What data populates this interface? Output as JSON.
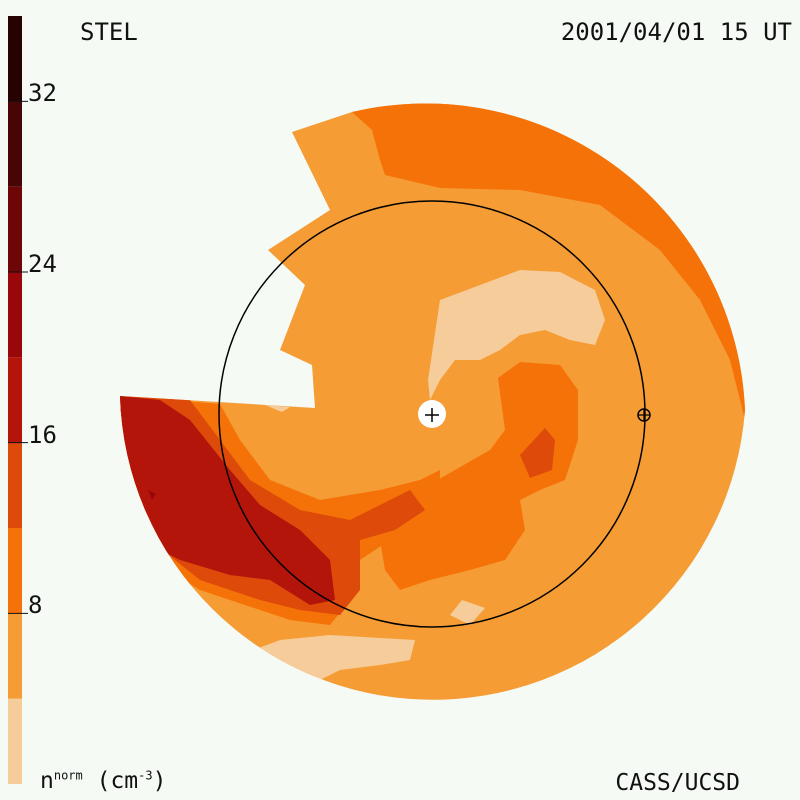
{
  "header": {
    "observatory": "STEL",
    "datetime": "2001/04/01 15 UT"
  },
  "footer": {
    "unit_base": "n",
    "unit_super": "norm",
    "unit_rest": " (cm",
    "unit_exp": "-3",
    "unit_close": ")",
    "credit": "CASS/UCSD"
  },
  "chart_data": {
    "type": "heatmap",
    "title": "",
    "colorbar": {
      "min": 0,
      "max": 36,
      "ticks": [
        8,
        16,
        24,
        32
      ],
      "tick_labels": [
        "8",
        "16",
        "24",
        "32"
      ],
      "levels": [
        {
          "from": 0,
          "to": 4,
          "color": "#f6cc9a"
        },
        {
          "from": 4,
          "to": 8,
          "color": "#f59c35"
        },
        {
          "from": 8,
          "to": 12,
          "color": "#f57208"
        },
        {
          "from": 12,
          "to": 16,
          "color": "#dd4a09"
        },
        {
          "from": 16,
          "to": 20,
          "color": "#b3150a"
        },
        {
          "from": 20,
          "to": 24,
          "color": "#9a070a"
        },
        {
          "from": 24,
          "to": 28,
          "color": "#6e0607"
        },
        {
          "from": 28,
          "to": 32,
          "color": "#480505"
        },
        {
          "from": 32,
          "to": 36,
          "color": "#260303"
        }
      ]
    },
    "markers": [
      "sun",
      "earth"
    ],
    "background_level": "4-8 cm^-3",
    "colors": {
      "light": "#f6cc9a",
      "base": "#f59c35",
      "mid": "#f57208",
      "high": "#dd4a09",
      "higher": "#b3150a",
      "peak": "#9a070a"
    }
  }
}
